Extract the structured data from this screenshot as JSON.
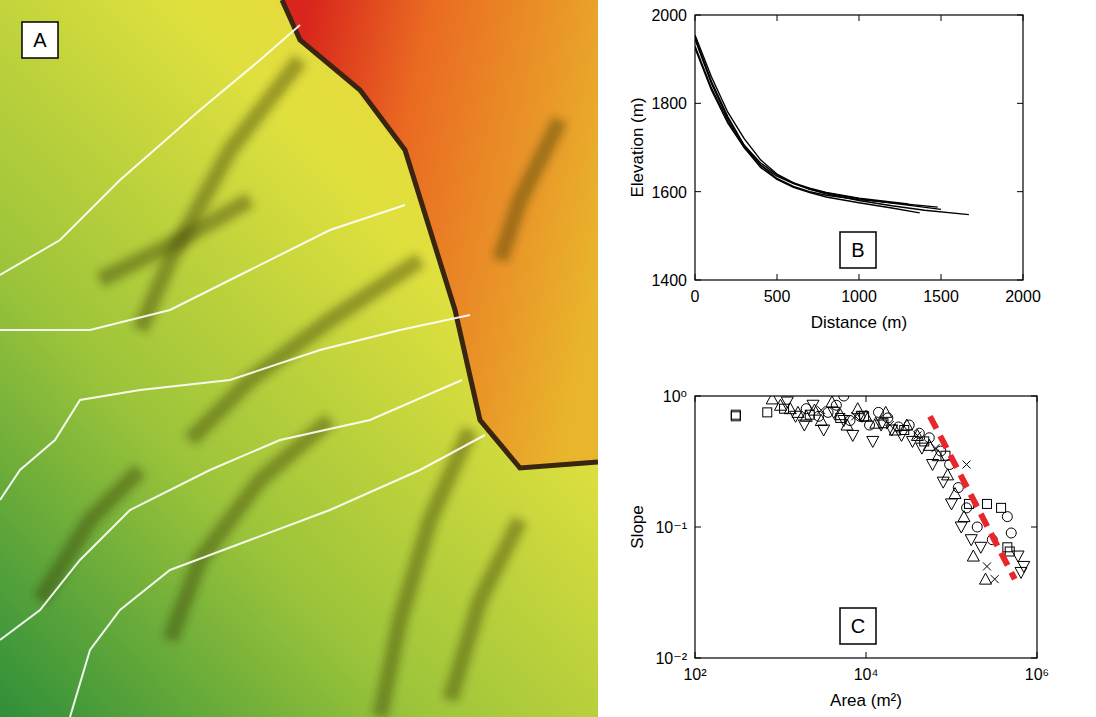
{
  "chart_data": [
    {
      "type": "map",
      "panel_label": "A"
    },
    {
      "type": "line",
      "panel_label": "B",
      "x_label": "Distance (m)",
      "y_label": "Elevation (m)",
      "xlim": [
        0,
        2000
      ],
      "ylim": [
        1400,
        2000
      ],
      "xticks": [
        0,
        500,
        1000,
        1500,
        2000
      ],
      "yticks": [
        1400,
        1600,
        1800,
        2000
      ],
      "series": [
        {
          "color": "#000000",
          "x": [
            0,
            100,
            200,
            300,
            400,
            500,
            600,
            700,
            800,
            1000,
            1200,
            1400,
            1670
          ],
          "values": [
            1955,
            1860,
            1780,
            1720,
            1672,
            1640,
            1620,
            1605,
            1595,
            1580,
            1568,
            1558,
            1548
          ]
        },
        {
          "color": "#000000",
          "x": [
            0,
            100,
            200,
            300,
            400,
            500,
            600,
            700,
            800,
            1000,
            1200,
            1480
          ],
          "values": [
            1950,
            1850,
            1770,
            1705,
            1660,
            1630,
            1612,
            1600,
            1592,
            1582,
            1575,
            1565
          ]
        },
        {
          "color": "#000000",
          "x": [
            0,
            100,
            200,
            300,
            400,
            500,
            600,
            700,
            800,
            1000,
            1200,
            1370
          ],
          "values": [
            1930,
            1835,
            1760,
            1700,
            1655,
            1628,
            1610,
            1598,
            1588,
            1575,
            1563,
            1552
          ]
        },
        {
          "color": "#000000",
          "x": [
            0,
            100,
            200,
            300,
            400,
            500,
            600,
            700,
            800,
            1000,
            1200,
            1500
          ],
          "values": [
            1925,
            1830,
            1755,
            1700,
            1660,
            1635,
            1618,
            1606,
            1597,
            1584,
            1574,
            1560
          ]
        },
        {
          "color": "#000000",
          "x": [
            0,
            100,
            200,
            300,
            400,
            500,
            600,
            700,
            800,
            1000,
            1300
          ],
          "values": [
            1945,
            1845,
            1765,
            1705,
            1665,
            1638,
            1620,
            1608,
            1598,
            1585,
            1572
          ]
        }
      ]
    },
    {
      "type": "scatter",
      "panel_label": "C",
      "log": true,
      "x_label": "Area (m²)",
      "y_label": "Slope",
      "xlim": [
        100,
        1000000
      ],
      "ylim": [
        0.01,
        1
      ],
      "xticks": [
        {
          "value": 100,
          "label": "10²"
        },
        {
          "value": 10000,
          "label": "10⁴"
        },
        {
          "value": 1000000,
          "label": "10⁶"
        }
      ],
      "yticks": [
        {
          "value": 0.01,
          "label": "10⁻²"
        },
        {
          "value": 0.1,
          "label": "10⁻¹"
        },
        {
          "value": 1,
          "label": "10⁰"
        }
      ],
      "series": [
        {
          "marker": "triangle-up",
          "color": "#000000",
          "x": [
            800,
            1000,
            1300,
            1600,
            2000,
            2500,
            3000,
            4000,
            5000,
            6000,
            8000,
            10000,
            13000,
            17000,
            22000,
            30000,
            40000,
            55000,
            70000,
            90000,
            110000,
            140000,
            180000,
            250000
          ],
          "values": [
            0.95,
            0.85,
            0.8,
            0.75,
            0.7,
            0.78,
            0.65,
            0.9,
            0.72,
            0.6,
            0.8,
            0.7,
            0.62,
            0.75,
            0.55,
            0.6,
            0.5,
            0.42,
            0.35,
            0.25,
            0.18,
            0.12,
            0.06,
            0.04
          ]
        },
        {
          "marker": "triangle-down",
          "color": "#000000",
          "x": [
            1200,
            1500,
            1900,
            2400,
            3200,
            4200,
            5500,
            7000,
            9000,
            12000,
            15000,
            20000,
            26000,
            35000,
            45000,
            60000,
            80000,
            100000,
            130000,
            170000,
            220000,
            600000,
            650000,
            700000
          ],
          "values": [
            0.9,
            0.7,
            0.6,
            0.85,
            0.55,
            0.75,
            0.65,
            0.5,
            0.7,
            0.45,
            0.6,
            0.55,
            0.5,
            0.45,
            0.4,
            0.3,
            0.22,
            0.15,
            0.1,
            0.08,
            0.07,
            0.06,
            0.045,
            0.05
          ]
        },
        {
          "marker": "circle",
          "color": "#000000",
          "x": [
            2000,
            2800,
            3600,
            4500,
            5500,
            6500,
            8500,
            11000,
            14000,
            18000,
            24000,
            32000,
            42000,
            55000,
            75000,
            95000,
            120000,
            150000,
            200000,
            300000,
            450000,
            500000
          ],
          "values": [
            0.8,
            0.7,
            0.75,
            0.85,
            1.0,
            0.65,
            0.7,
            0.6,
            0.75,
            0.68,
            0.58,
            0.6,
            0.52,
            0.48,
            0.38,
            0.3,
            0.2,
            0.14,
            0.1,
            0.08,
            0.12,
            0.09
          ]
        },
        {
          "marker": "square",
          "color": "#000000",
          "x": [
            300,
            300,
            700,
            1100,
            2200,
            5000,
            9500,
            16000,
            28000,
            48000,
            85000,
            160000,
            260000,
            380000,
            450000,
            480000
          ],
          "values": [
            0.72,
            0.7,
            0.75,
            0.8,
            0.72,
            0.68,
            0.7,
            0.62,
            0.55,
            0.45,
            0.35,
            0.15,
            0.15,
            0.14,
            0.07,
            0.065
          ]
        },
        {
          "marker": "x",
          "color": "#000000",
          "x": [
            3000,
            7500,
            19000,
            40000,
            65000,
            150000,
            260000,
            320000
          ],
          "values": [
            0.78,
            0.7,
            0.6,
            0.5,
            0.4,
            0.3,
            0.05,
            0.04
          ]
        },
        {
          "type": "line",
          "line_style": "dashed",
          "color": "#e8262b",
          "x": [
            56000,
            550000
          ],
          "values": [
            0.7,
            0.04
          ]
        }
      ]
    }
  ]
}
